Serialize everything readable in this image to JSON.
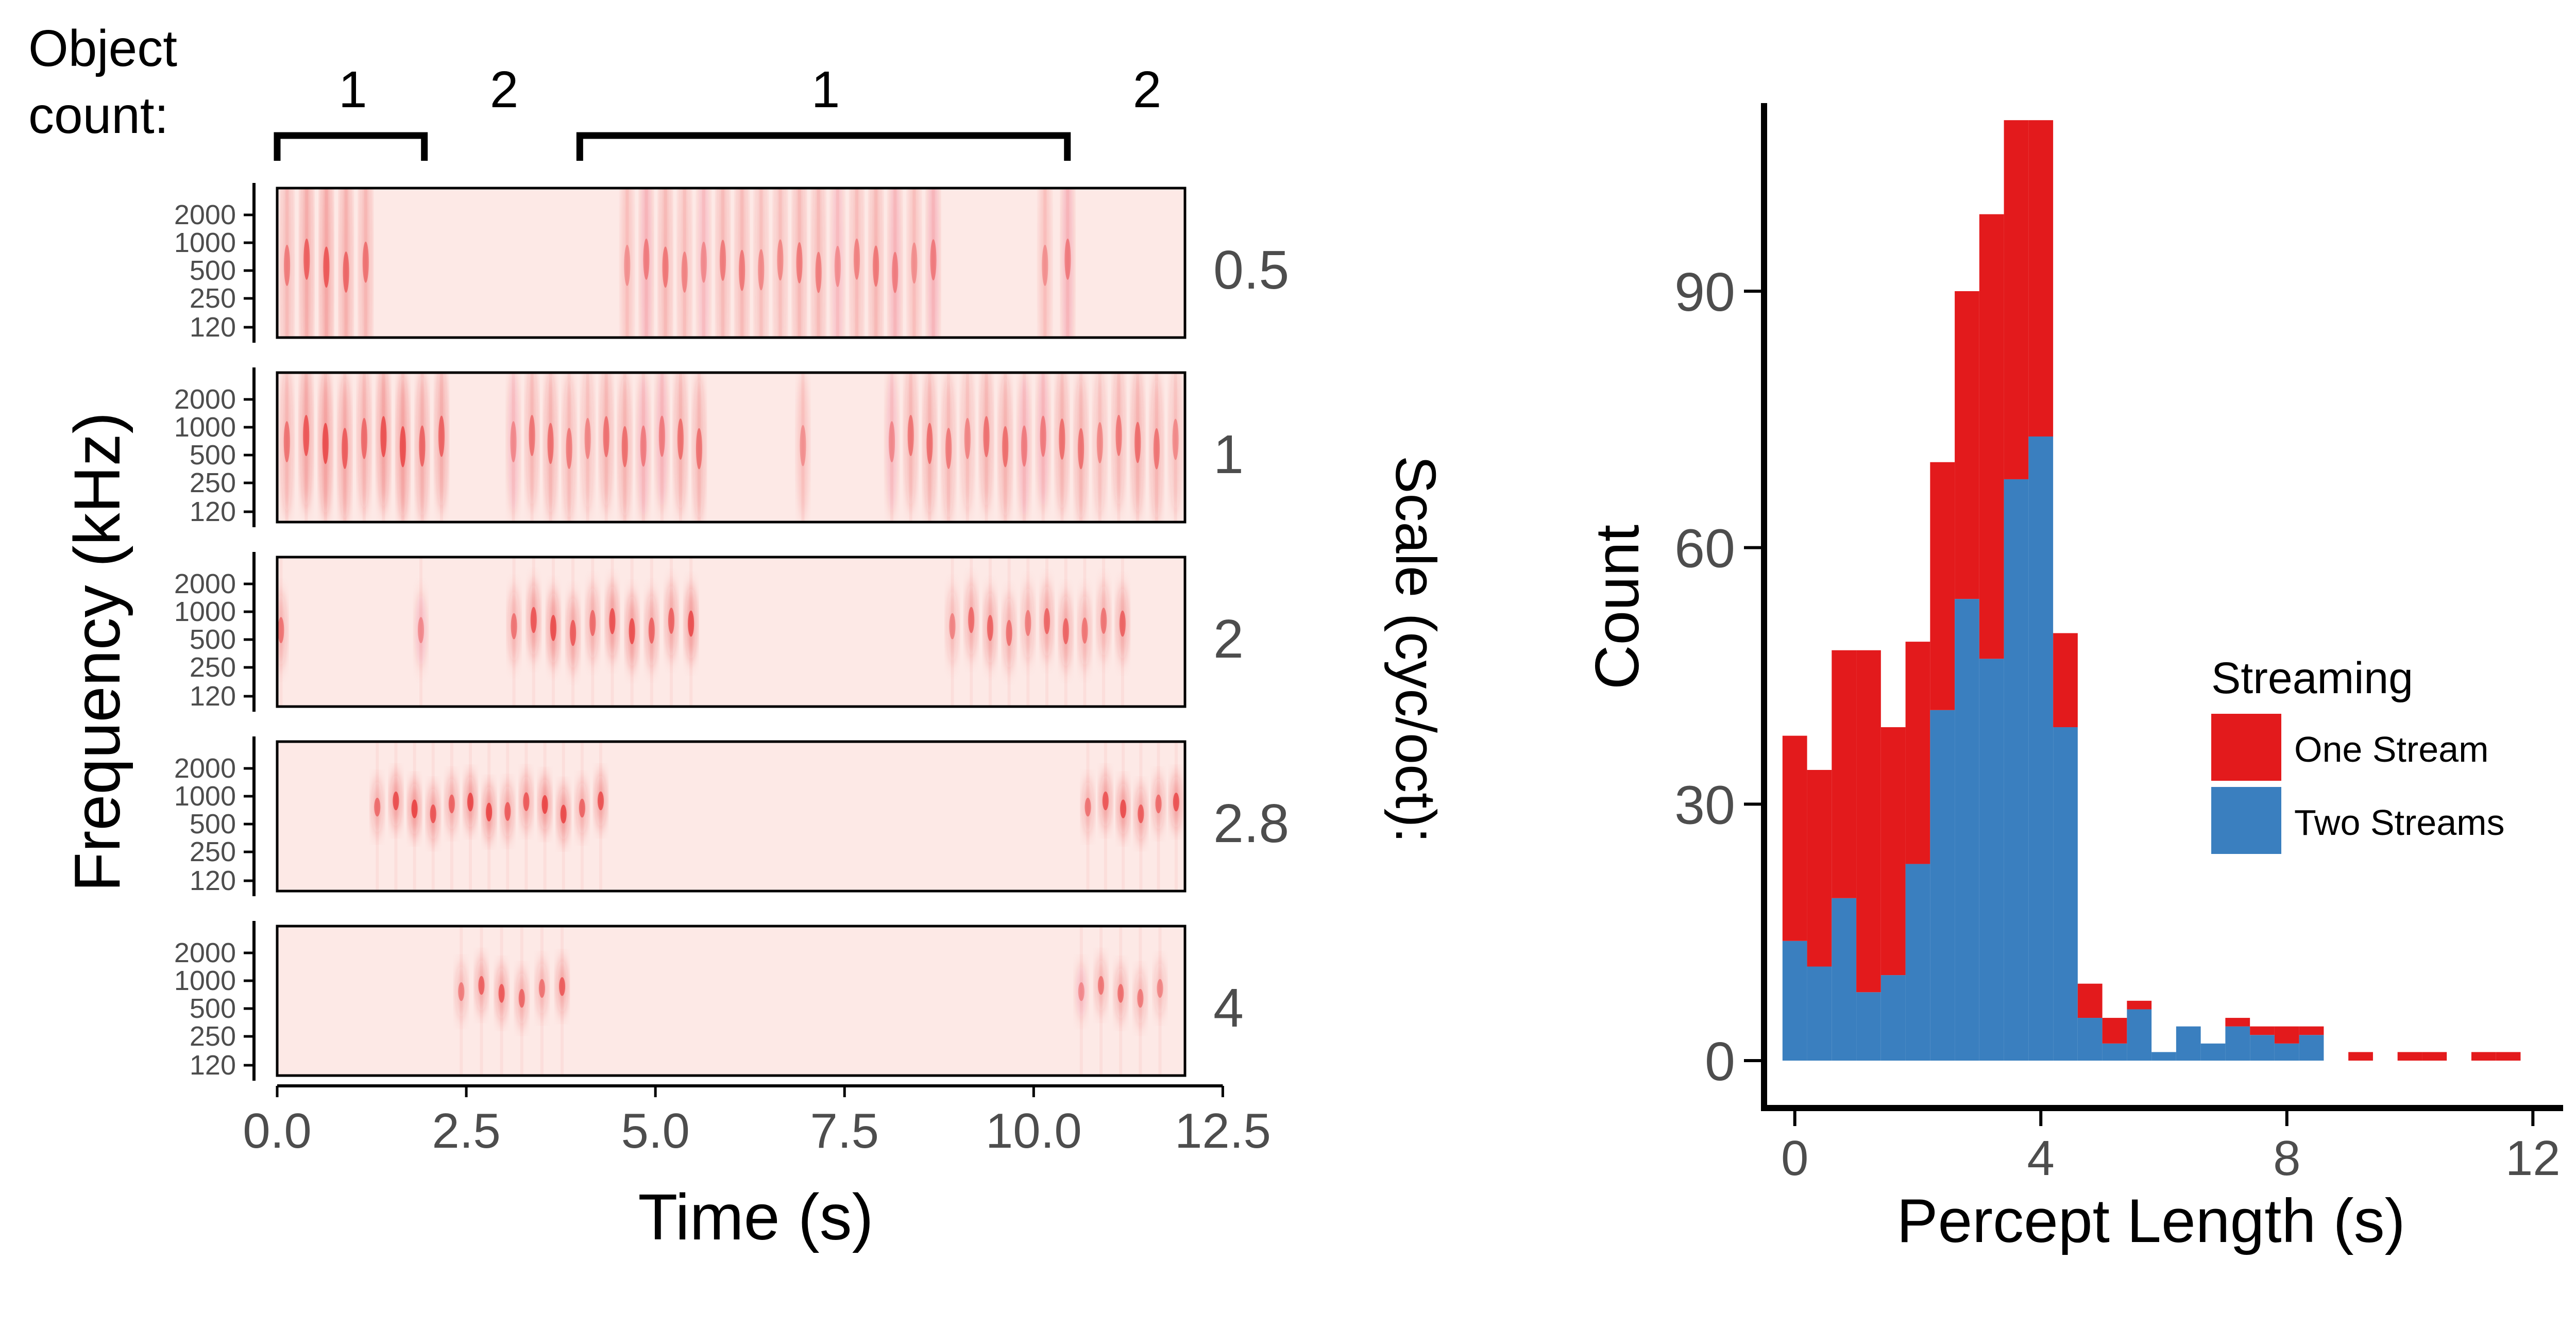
{
  "colors": {
    "panel_background": "#FDE9E6",
    "energy": "#E31A1C",
    "one_stream": "#E31A1C",
    "two_streams": "#3A7FBF",
    "axis": "#000000",
    "tick_text": "#4D4D4D"
  },
  "left_panel": {
    "object_count_label_line1": "Object",
    "object_count_label_line2": "count:",
    "ylabel": "Frequency (kHz)",
    "xlabel": "Time (s)",
    "scale_label": "Scale (cyc/oct):",
    "frequency_ticks": [
      "2000",
      "1000",
      "500",
      "250",
      "120"
    ],
    "time_ticks": [
      "0.0",
      "2.5",
      "5.0",
      "7.5",
      "10.0",
      "12.5"
    ],
    "brackets": [
      {
        "label": "1",
        "kind": "bracket",
        "start": 0.0,
        "end": 2.0
      },
      {
        "label": "2",
        "kind": "text",
        "start": 2.0,
        "end": 4.0
      },
      {
        "label": "1",
        "kind": "bracket",
        "start": 4.0,
        "end": 10.5
      },
      {
        "label": "2",
        "kind": "text",
        "start": 10.5,
        "end": 12.5
      }
    ]
  },
  "chart_data": [
    {
      "type": "heatmap",
      "xlabel": "Time (s)",
      "ylabel": "Frequency (kHz)",
      "xlim": [
        0,
        12
      ],
      "x_ticks": [
        0.0,
        2.5,
        5.0,
        7.5,
        10.0,
        12.5
      ],
      "y_ticks": [
        120,
        250,
        500,
        1000,
        2000
      ],
      "scale_axis_label": "Scale (cyc/oct):",
      "rows": [
        {
          "scale": "0.5",
          "bursts": [
            {
              "start": 0.0,
              "end": 1.3,
              "intensity": 0.55,
              "freq": 500
            },
            {
              "start": 4.5,
              "end": 8.8,
              "intensity": 0.4,
              "freq": 500
            },
            {
              "start": 10.0,
              "end": 10.6,
              "intensity": 0.4,
              "freq": 500
            }
          ]
        },
        {
          "scale": "1",
          "bursts": [
            {
              "start": 0.0,
              "end": 2.3,
              "intensity": 0.6,
              "freq": 600
            },
            {
              "start": 3.0,
              "end": 5.7,
              "intensity": 0.45,
              "freq": 600
            },
            {
              "start": 6.8,
              "end": 7.1,
              "intensity": 0.4,
              "freq": 550
            },
            {
              "start": 8.0,
              "end": 12.0,
              "intensity": 0.45,
              "freq": 600
            }
          ]
        },
        {
          "scale": "2",
          "bursts": [
            {
              "start": 0.0,
              "end": 0.1,
              "intensity": 0.6,
              "freq": 550
            },
            {
              "start": 1.8,
              "end": 2.0,
              "intensity": 0.45,
              "freq": 550
            },
            {
              "start": 3.0,
              "end": 5.6,
              "intensity": 0.6,
              "freq": 600
            },
            {
              "start": 8.8,
              "end": 11.3,
              "intensity": 0.5,
              "freq": 600
            }
          ]
        },
        {
          "scale": "2.8",
          "bursts": [
            {
              "start": 1.2,
              "end": 4.4,
              "intensity": 0.65,
              "freq": 650
            },
            {
              "start": 10.6,
              "end": 12.0,
              "intensity": 0.6,
              "freq": 650
            }
          ]
        },
        {
          "scale": "4",
          "bursts": [
            {
              "start": 2.3,
              "end": 3.9,
              "intensity": 0.55,
              "freq": 650
            },
            {
              "start": 10.5,
              "end": 11.8,
              "intensity": 0.45,
              "freq": 650
            }
          ]
        }
      ]
    },
    {
      "type": "bar",
      "subtype": "stacked-histogram",
      "xlabel": "Percept Length (s)",
      "ylabel": "Count",
      "xlim": [
        -0.5,
        12.5
      ],
      "ylim": [
        0,
        112
      ],
      "x_ticks": [
        0,
        4,
        8,
        12
      ],
      "y_ticks": [
        0,
        30,
        60,
        90
      ],
      "bin_width": 0.4,
      "bin_starts": [
        -0.2,
        0.2,
        0.6,
        1.0,
        1.4,
        1.8,
        2.2,
        2.6,
        3.0,
        3.4,
        3.8,
        4.2,
        4.6,
        5.0,
        5.4,
        5.8,
        6.2,
        6.6,
        7.0,
        7.4,
        7.8,
        8.2,
        8.6,
        9.0,
        9.4,
        9.8,
        10.2,
        10.6,
        11.0,
        11.4,
        11.8
      ],
      "series": [
        {
          "name": "Two Streams",
          "values": [
            14,
            11,
            19,
            8,
            10,
            23,
            41,
            54,
            47,
            68,
            73,
            39,
            5,
            2,
            6,
            1,
            4,
            2,
            4,
            3,
            2,
            3,
            0,
            0,
            0,
            0,
            0,
            0,
            0,
            0,
            0
          ]
        },
        {
          "name": "One Stream",
          "values": [
            24,
            23,
            29,
            40,
            29,
            26,
            29,
            36,
            52,
            42,
            37,
            11,
            4,
            3,
            1,
            0,
            0,
            0,
            1,
            1,
            2,
            1,
            0,
            1,
            0,
            1,
            1,
            0,
            1,
            1,
            0
          ]
        }
      ],
      "legend": {
        "title": "Streaming",
        "position": "right",
        "entries": [
          "One Stream",
          "Two Streams"
        ]
      }
    }
  ]
}
